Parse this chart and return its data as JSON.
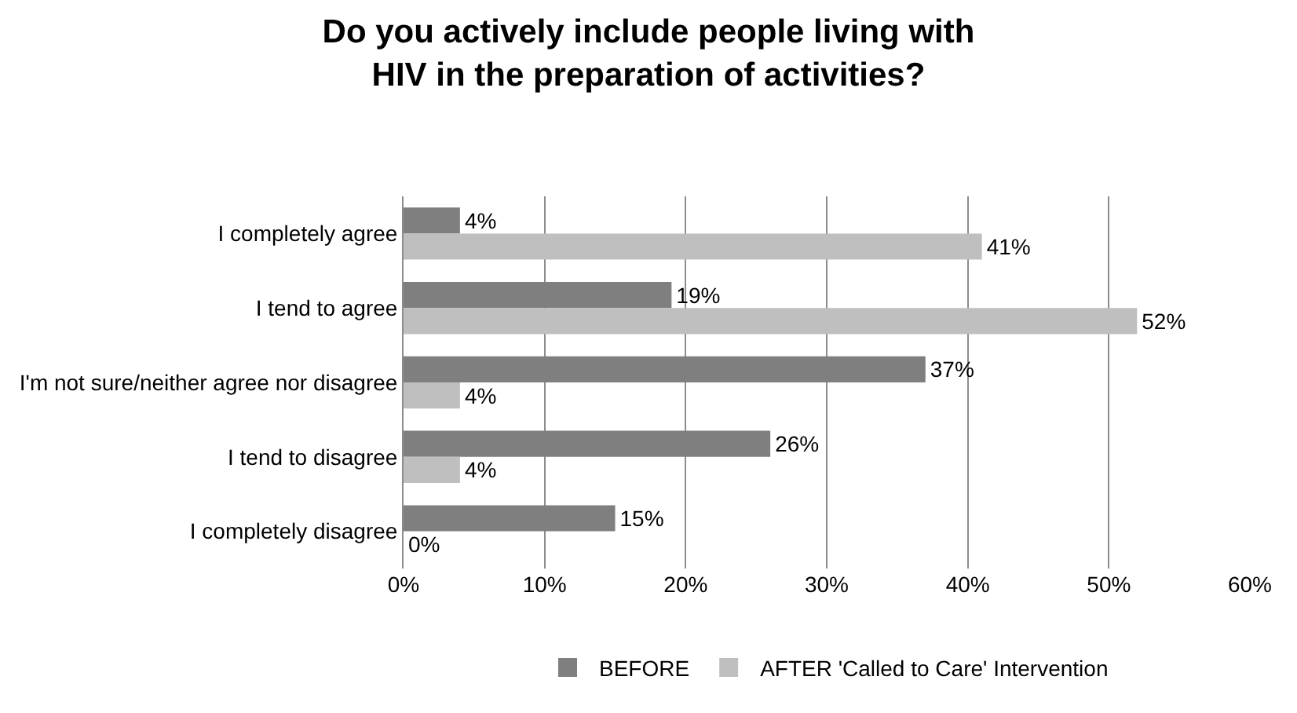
{
  "chart_data": {
    "type": "bar",
    "orientation": "horizontal",
    "title": "Do you actively include people living with HIV in the preparation of activities?",
    "categories": [
      "I completely agree",
      "I tend to agree",
      "I'm not sure/neither agree nor disagree",
      "I tend to disagree",
      "I completely disagree"
    ],
    "series": [
      {
        "name": "BEFORE",
        "color": "#7f7f7f",
        "values": [
          4,
          19,
          37,
          26,
          15
        ],
        "value_labels": [
          "4%",
          "19%",
          "37%",
          "26%",
          "15%"
        ]
      },
      {
        "name": "AFTER 'Called to Care' Intervention",
        "color": "#bfbfbf",
        "values": [
          41,
          52,
          4,
          4,
          0
        ],
        "value_labels": [
          "41%",
          "52%",
          "4%",
          "4%",
          "0%"
        ]
      }
    ],
    "xlim": [
      0,
      60
    ],
    "xticks": [
      {
        "value": 0,
        "label": "0%"
      },
      {
        "value": 10,
        "label": "10%"
      },
      {
        "value": 20,
        "label": "20%"
      },
      {
        "value": 30,
        "label": "30%"
      },
      {
        "value": 40,
        "label": "40%"
      },
      {
        "value": 50,
        "label": "50%"
      },
      {
        "value": 60,
        "label": "60%"
      }
    ],
    "grid": "x",
    "legend": "bottom"
  }
}
